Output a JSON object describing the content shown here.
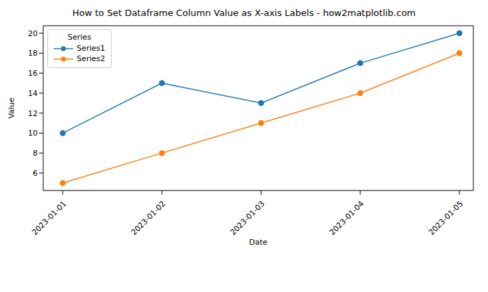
{
  "chart_data": {
    "type": "line",
    "title": "How to Set Dataframe Column Value as X-axis Labels - how2matplotlib.com",
    "x_label": "Date",
    "y_label": "Value",
    "legend_title": "Series",
    "legend": "upper left",
    "grid": false,
    "x": [
      "2023-01-01",
      "2023-01-02",
      "2023-01-03",
      "2023-01-04",
      "2023-01-05"
    ],
    "series": [
      {
        "name": "Series1",
        "color": "#1f77b4",
        "marker": "circle",
        "line_style": "solid",
        "values": [
          10,
          15,
          13,
          17,
          20
        ]
      },
      {
        "name": "Series2",
        "color": "#ff7f0e",
        "marker": "circle",
        "line_style": "solid",
        "values": [
          5,
          8,
          11,
          14,
          18
        ]
      }
    ],
    "ylim": [
      4.25,
      20.75
    ],
    "yticks": [
      6,
      8,
      10,
      12,
      14,
      16,
      18,
      20
    ]
  }
}
